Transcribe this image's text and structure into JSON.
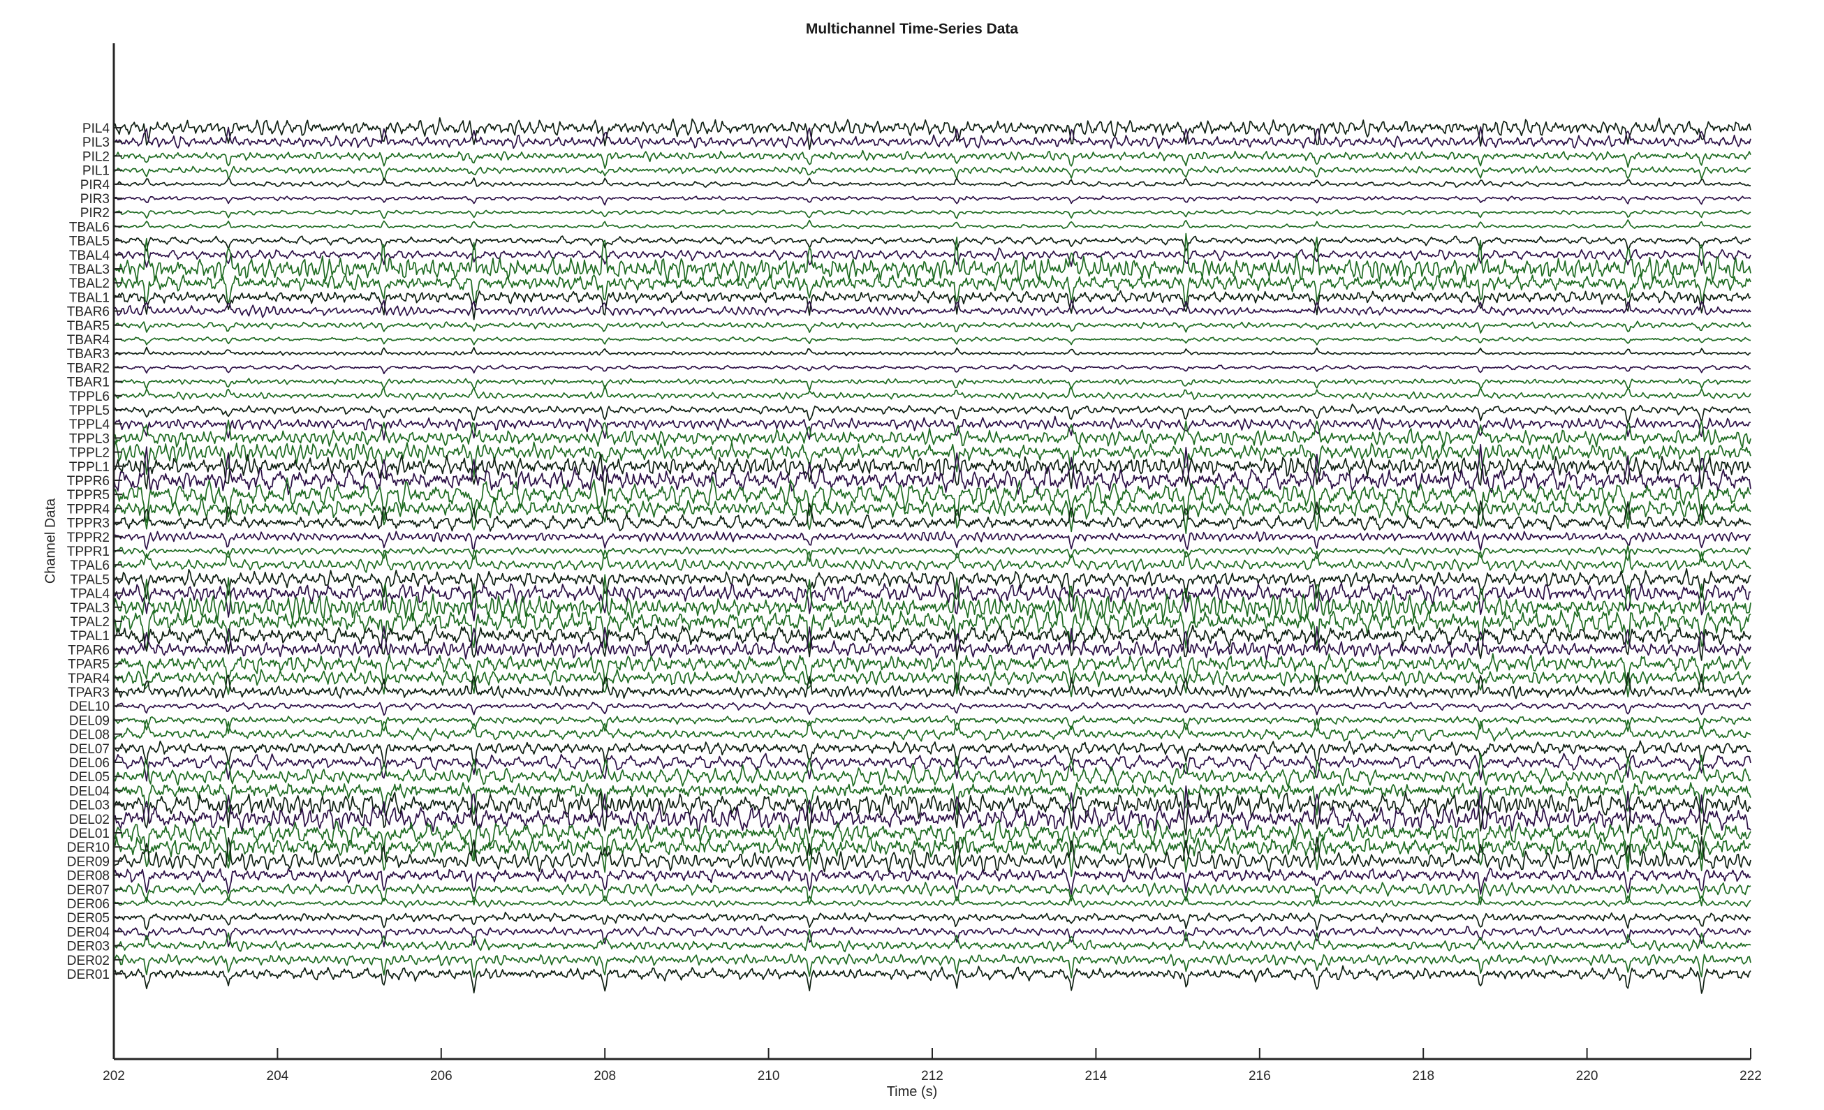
{
  "chart_data": {
    "type": "line",
    "title": "Multichannel Time-Series Data",
    "xlabel": "Time (s)",
    "ylabel": "Channel Data",
    "xlim": [
      202,
      222
    ],
    "x_ticks": [
      "202",
      "204",
      "206",
      "208",
      "210",
      "212",
      "214",
      "216",
      "218",
      "220",
      "222"
    ],
    "grid": false,
    "legend": "none",
    "colors": {
      "dark": "#0f1f12",
      "purple": "#2b0f45",
      "green": "#1f6b22",
      "axis": "#262626"
    },
    "channels": [
      "PIL4",
      "PIL3",
      "PIL2",
      "PIL1",
      "PIR4",
      "PIR3",
      "PIR2",
      "TBAL6",
      "TBAL5",
      "TBAL4",
      "TBAL3",
      "TBAL2",
      "TBAL1",
      "TBAR6",
      "TBAR5",
      "TBAR4",
      "TBAR3",
      "TBAR2",
      "TBAR1",
      "TPPL6",
      "TPPL5",
      "TPPL4",
      "TPPL3",
      "TPPL2",
      "TPPL1",
      "TPPR6",
      "TPPR5",
      "TPPR4",
      "TPPR3",
      "TPPR2",
      "TPPR1",
      "TPAL6",
      "TPAL5",
      "TPAL4",
      "TPAL3",
      "TPAL2",
      "TPAL1",
      "TPAR6",
      "TPAR5",
      "TPAR4",
      "TPAR3",
      "DEL10",
      "DEL09",
      "DEL08",
      "DEL07",
      "DEL06",
      "DEL05",
      "DEL04",
      "DEL03",
      "DEL02",
      "DEL01",
      "DER10",
      "DER09",
      "DER08",
      "DER07",
      "DER06",
      "DER05",
      "DER04",
      "DER03",
      "DER02",
      "DER01"
    ],
    "channel_amplitude": [
      1.0,
      0.8,
      0.6,
      0.45,
      0.35,
      0.3,
      0.3,
      0.3,
      0.5,
      0.6,
      1.6,
      1.2,
      1.0,
      0.6,
      0.4,
      0.3,
      0.3,
      0.3,
      0.4,
      0.45,
      0.6,
      0.8,
      1.0,
      1.1,
      1.3,
      1.5,
      1.4,
      1.2,
      1.0,
      0.7,
      0.5,
      0.9,
      1.1,
      1.3,
      1.5,
      1.6,
      1.4,
      1.3,
      1.2,
      1.0,
      0.9,
      0.5,
      0.6,
      0.8,
      0.9,
      1.0,
      1.1,
      1.3,
      1.5,
      1.6,
      1.5,
      1.4,
      1.2,
      1.0,
      0.8,
      0.4,
      0.6,
      0.7,
      0.7,
      0.8,
      0.9
    ],
    "sharp_events_s": [
      202.4,
      203.4,
      205.3,
      206.4,
      208.0,
      210.5,
      212.3,
      213.7,
      215.1,
      216.7,
      218.7,
      220.5,
      221.4
    ]
  }
}
